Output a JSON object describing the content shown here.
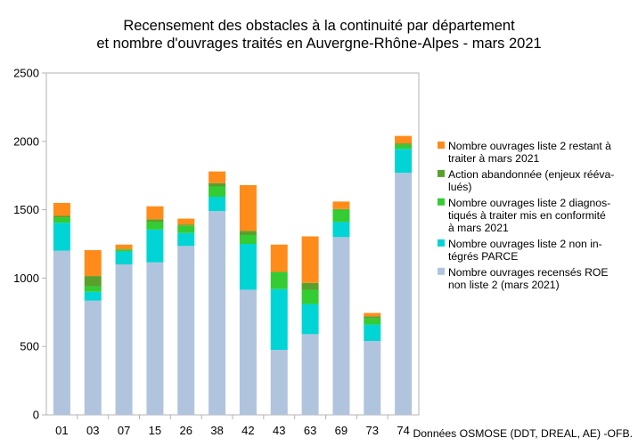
{
  "chart_data": {
    "type": "bar",
    "stacked": true,
    "title": [
      "Recensement des obstacles à la continuité par département",
      "et nombre d'ouvrages traités en Auvergne-Rhône-Alpes - mars 2021"
    ],
    "xlabel": "",
    "ylabel": "",
    "ylim": [
      0,
      2500
    ],
    "yticks": [
      0,
      500,
      1000,
      1500,
      2000,
      2500
    ],
    "grid": false,
    "legend_position": "right",
    "categories": [
      "01",
      "03",
      "07",
      "15",
      "26",
      "38",
      "42",
      "43",
      "63",
      "69",
      "73",
      "74"
    ],
    "series": [
      {
        "name": "Nombre ouvrages recensés ROE non liste 2 (mars 2021)",
        "legend_lines": [
          "Nombre ouvrages recensés ROE",
          "non liste 2 (mars 2021)"
        ],
        "color": "#b0c4de",
        "values": [
          1200,
          835,
          1100,
          1115,
          1235,
          1490,
          915,
          475,
          590,
          1300,
          540,
          1770
        ]
      },
      {
        "name": "Nombre ouvrages liste 2 non intégrés PARCE",
        "legend_lines": [
          "Nombre ouvrages liste 2 non in-",
          "tégrés PARCE"
        ],
        "color": "#00d4d4",
        "values": [
          205,
          65,
          95,
          240,
          95,
          105,
          335,
          445,
          220,
          110,
          120,
          175
        ]
      },
      {
        "name": "Nombre ouvrages liste 2 diagnostiqués à traiter mis en conformité à mars 2021",
        "legend_lines": [
          "Nombre ouvrages liste 2 diagnos-",
          "tiqués à traiter mis en conformité",
          "à mars 2021"
        ],
        "color": "#33cc33",
        "values": [
          40,
          40,
          15,
          55,
          55,
          75,
          65,
          125,
          105,
          90,
          45,
          30
        ]
      },
      {
        "name": "Action abandonnée (enjeux réévalués)",
        "legend_lines": [
          "Action abandonnée (enjeux rééva-",
          "lués)"
        ],
        "color": "#5aa02c",
        "values": [
          10,
          75,
          0,
          20,
          5,
          25,
          30,
          0,
          50,
          5,
          15,
          10
        ]
      },
      {
        "name": "Nombre ouvrages liste 2 restant à traiter à mars 2021",
        "legend_lines": [
          "Nombre ouvrages liste 2 restant à",
          "traiter à mars 2021"
        ],
        "color": "#ff8c1a",
        "values": [
          95,
          190,
          35,
          95,
          45,
          85,
          335,
          200,
          340,
          55,
          25,
          55
        ]
      }
    ],
    "source_note": "Données OSMOSE (DDT, DREAL, AE) -OFB."
  }
}
